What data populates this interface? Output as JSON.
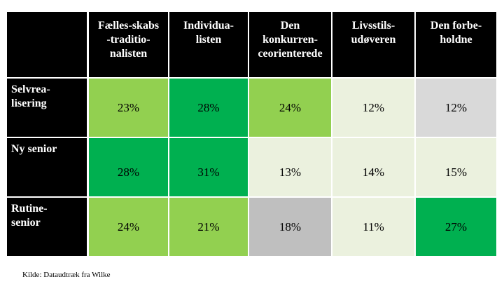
{
  "chart_data": {
    "type": "heatmap",
    "columns": [
      "Fælles-skabs\n-traditio-\nnalisten",
      "Individua-\nlisten",
      "Den\nkonkurren-\nceorienterede",
      "Livsstils-\nudøveren",
      "Den forbe-\nholdne"
    ],
    "rows": [
      {
        "label": "Selvrea-\nlisering",
        "values": [
          23,
          28,
          24,
          12,
          12
        ],
        "labels": [
          "23%",
          "28%",
          "24%",
          "12%",
          "12%"
        ]
      },
      {
        "label": "Ny senior",
        "values": [
          28,
          31,
          13,
          14,
          15
        ],
        "labels": [
          "28%",
          "31%",
          "13%",
          "14%",
          "15%"
        ]
      },
      {
        "label": "Rutine-\nsenior",
        "values": [
          24,
          21,
          18,
          11,
          27
        ],
        "labels": [
          "24%",
          "21%",
          "18%",
          "11%",
          "27%"
        ]
      }
    ],
    "cell_colors": [
      [
        "#92d050",
        "#00b050",
        "#92d050",
        "#ebf1de",
        "#d9d9d9"
      ],
      [
        "#00b050",
        "#00b050",
        "#ebf1de",
        "#ebf1de",
        "#ebf1de"
      ],
      [
        "#92d050",
        "#92d050",
        "#bfbfbf",
        "#ebf1de",
        "#00b050"
      ]
    ]
  },
  "source": "Kilde: Dataudtræk fra Wilke"
}
